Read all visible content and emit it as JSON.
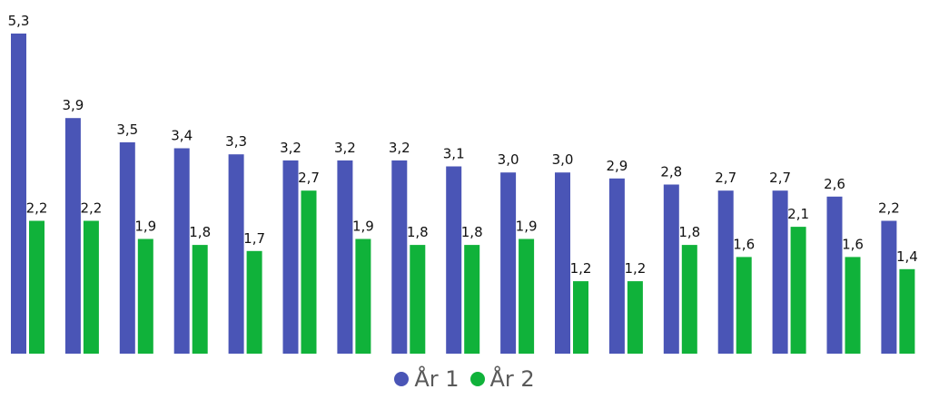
{
  "chart_data": {
    "type": "bar",
    "title": "",
    "xlabel": "",
    "ylabel": "",
    "ylim": [
      0,
      5.3
    ],
    "grid": false,
    "legend_position": "bottom",
    "value_labels": true,
    "series": [
      {
        "name": "År 1",
        "color": "#4a55b6",
        "values": [
          5.3,
          3.9,
          3.5,
          3.4,
          3.3,
          3.2,
          3.2,
          3.2,
          3.1,
          3.0,
          3.0,
          2.9,
          2.8,
          2.7,
          2.7,
          2.6,
          2.2
        ],
        "labels": [
          "5,3",
          "3,9",
          "3,5",
          "3,4",
          "3,3",
          "3,2",
          "3,2",
          "3,2",
          "3,1",
          "3,0",
          "3,0",
          "2,9",
          "2,8",
          "2,7",
          "2,7",
          "2,6",
          "2,2"
        ]
      },
      {
        "name": "År 2",
        "color": "#10b23a",
        "values": [
          2.2,
          2.2,
          1.9,
          1.8,
          1.7,
          2.7,
          1.9,
          1.8,
          1.8,
          1.9,
          1.2,
          1.2,
          1.8,
          1.6,
          2.1,
          1.6,
          1.4
        ],
        "labels": [
          "2,2",
          "2,2",
          "1,9",
          "1,8",
          "1,7",
          "2,7",
          "1,9",
          "1,8",
          "1,8",
          "1,9",
          "1,2",
          "1,2",
          "1,8",
          "1,6",
          "2,1",
          "1,6",
          "1,4"
        ]
      }
    ]
  }
}
